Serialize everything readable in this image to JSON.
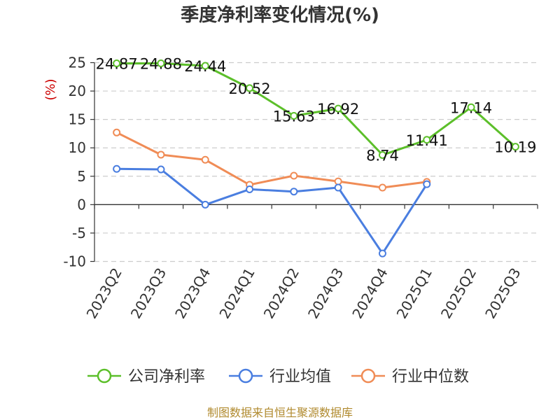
{
  "chart_data": {
    "type": "line",
    "title": "季度净利率变化情况(%)",
    "ylabel": "(%)",
    "ylim": [
      -10,
      25
    ],
    "yticks": [
      "25",
      "20",
      "15",
      "10",
      "5",
      "0",
      "-5",
      "-10"
    ],
    "grid": true,
    "legend_position": "bottom",
    "categories": [
      "2023Q2",
      "2023Q3",
      "2023Q4",
      "2024Q1",
      "2024Q2",
      "2024Q3",
      "2024Q4",
      "2025Q1",
      "2025Q2",
      "2025Q3"
    ],
    "series": [
      {
        "name": "公司净利率",
        "color": "#5cbf2a",
        "values": [
          24.87,
          24.88,
          24.44,
          20.52,
          15.63,
          16.92,
          8.74,
          11.41,
          17.14,
          10.19
        ],
        "labels": [
          "24.87",
          "24.88",
          "24.44",
          "20.52",
          "15.63",
          "16.92",
          "8.74",
          "11.41",
          "17.14",
          "10.19"
        ]
      },
      {
        "name": "行业均值",
        "color": "#4a7ee0",
        "values": [
          6.3,
          6.2,
          0.0,
          2.7,
          2.3,
          3.0,
          -8.6,
          3.6,
          null,
          null
        ]
      },
      {
        "name": "行业中位数",
        "color": "#f08c56",
        "values": [
          12.7,
          8.8,
          7.9,
          3.5,
          5.1,
          4.1,
          3.0,
          4.0,
          null,
          null
        ]
      }
    ]
  },
  "source": "制图数据来自恒生聚源数据库"
}
